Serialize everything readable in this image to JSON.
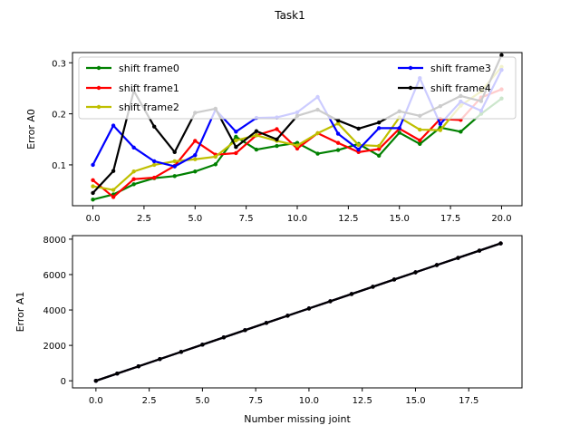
{
  "suptitle": "Task1",
  "chart_data": [
    {
      "type": "line",
      "ylabel": "Error A0",
      "xlabel": "",
      "xlim": [
        -1,
        21
      ],
      "ylim": [
        0.02,
        0.32
      ],
      "xticks": [
        0,
        2.5,
        5,
        7.5,
        10,
        12.5,
        15,
        17.5,
        20
      ],
      "xtick_labels": [
        "0.0",
        "2.5",
        "5.0",
        "7.5",
        "10.0",
        "12.5",
        "15.0",
        "17.5",
        "20.0"
      ],
      "yticks": [
        0.1,
        0.2,
        0.3
      ],
      "ytick_labels": [
        "0.1",
        "0.2",
        "0.3"
      ],
      "legend": "top, two columns",
      "x": [
        0,
        1,
        2,
        3,
        4,
        5,
        6,
        7,
        8,
        9,
        10,
        11,
        12,
        13,
        14,
        15,
        16,
        17,
        18,
        19,
        20
      ],
      "series": [
        {
          "name": "shift frame0",
          "color": "#008000",
          "values": [
            0.032,
            0.042,
            0.062,
            0.074,
            0.078,
            0.087,
            0.101,
            0.155,
            0.13,
            0.137,
            0.143,
            0.122,
            0.129,
            0.141,
            0.118,
            0.163,
            0.141,
            0.173,
            0.165,
            0.2,
            0.23
          ]
        },
        {
          "name": "shift frame1",
          "color": "#ff0000",
          "values": [
            0.07,
            0.037,
            0.072,
            0.075,
            0.098,
            0.147,
            0.12,
            0.123,
            0.158,
            0.17,
            0.132,
            0.162,
            0.143,
            0.125,
            0.131,
            0.171,
            0.148,
            0.19,
            0.188,
            0.232,
            0.248
          ]
        },
        {
          "name": "shift frame2",
          "color": "#bfbf00",
          "values": [
            0.058,
            0.051,
            0.087,
            0.1,
            0.107,
            0.111,
            0.116,
            0.148,
            0.158,
            0.147,
            0.138,
            0.162,
            0.181,
            0.139,
            0.137,
            0.193,
            0.169,
            0.168,
            0.216,
            0.244,
            0.292
          ]
        },
        {
          "name": "shift frame3",
          "color": "#0000ff",
          "values": [
            0.1,
            0.177,
            0.134,
            0.107,
            0.097,
            0.119,
            0.208,
            0.165,
            0.192,
            0.193,
            0.203,
            0.233,
            0.161,
            0.13,
            0.172,
            0.172,
            0.27,
            0.18,
            0.224,
            0.206,
            0.286
          ]
        },
        {
          "name": "shift frame4",
          "color": "#000000",
          "values": [
            0.045,
            0.088,
            0.245,
            0.175,
            0.125,
            0.202,
            0.21,
            0.135,
            0.166,
            0.15,
            0.196,
            0.208,
            0.187,
            0.171,
            0.183,
            0.205,
            0.196,
            0.215,
            0.235,
            0.225,
            0.315
          ]
        }
      ]
    },
    {
      "type": "line",
      "ylabel": "Error A1",
      "xlabel": "Number missing joint",
      "xlim": [
        -1.1,
        20
      ],
      "ylim": [
        -400,
        8200
      ],
      "xticks": [
        0,
        2.5,
        5,
        7.5,
        10,
        12.5,
        15,
        17.5
      ],
      "xtick_labels": [
        "0.0",
        "2.5",
        "5.0",
        "7.5",
        "10.0",
        "12.5",
        "15.0",
        "17.5"
      ],
      "yticks": [
        0,
        2000,
        4000,
        6000,
        8000
      ],
      "ytick_labels": [
        "0",
        "2000",
        "4000",
        "6000",
        "8000"
      ],
      "x": [
        0,
        1,
        2,
        3,
        4,
        5,
        6,
        7,
        8,
        9,
        10,
        11,
        12,
        13,
        14,
        15,
        16,
        17,
        18,
        19
      ],
      "series": [
        {
          "name": "shift frame0",
          "color": "#008000",
          "values": [
            0,
            408,
            817,
            1225,
            1634,
            2042,
            2451,
            2859,
            3268,
            3676,
            4085,
            4493,
            4902,
            5310,
            5719,
            6127,
            6536,
            6944,
            7353,
            7761
          ]
        },
        {
          "name": "shift frame1",
          "color": "#ff0000",
          "values": [
            0,
            408,
            817,
            1225,
            1634,
            2042,
            2451,
            2859,
            3268,
            3676,
            4085,
            4493,
            4902,
            5310,
            5719,
            6127,
            6536,
            6944,
            7353,
            7761
          ]
        },
        {
          "name": "shift frame2",
          "color": "#bfbf00",
          "values": [
            0,
            408,
            817,
            1225,
            1634,
            2042,
            2451,
            2859,
            3268,
            3676,
            4085,
            4493,
            4902,
            5310,
            5719,
            6127,
            6536,
            6944,
            7353,
            7761
          ]
        },
        {
          "name": "shift frame3",
          "color": "#0000ff",
          "values": [
            0,
            408,
            817,
            1225,
            1634,
            2042,
            2451,
            2859,
            3268,
            3676,
            4085,
            4493,
            4902,
            5310,
            5719,
            6127,
            6536,
            6944,
            7353,
            7761
          ]
        },
        {
          "name": "shift frame4",
          "color": "#000000",
          "values": [
            0,
            408,
            817,
            1225,
            1634,
            2042,
            2451,
            2859,
            3268,
            3676,
            4085,
            4493,
            4902,
            5310,
            5719,
            6127,
            6536,
            6944,
            7353,
            7761
          ]
        }
      ]
    }
  ]
}
